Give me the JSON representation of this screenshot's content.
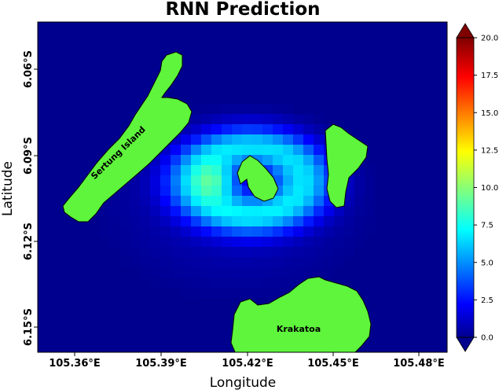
{
  "title": "RNN Prediction",
  "x_axis": {
    "label": "Longitude",
    "ticks": [
      "105.36°E",
      "105.39°E",
      "105.42°E",
      "105.45°E",
      "105.48°E"
    ]
  },
  "y_axis": {
    "label": "Latitude",
    "ticks": [
      "6.06°S",
      "6.09°S",
      "6.12°S",
      "6.15°S"
    ]
  },
  "colorbar": {
    "colormap": "jet",
    "range": [
      0,
      20
    ],
    "ticks": [
      "0.0",
      "2.5",
      "5.0",
      "7.5",
      "10.0",
      "12.5",
      "15.0",
      "17.5",
      "20.0"
    ]
  },
  "islands": [
    {
      "name": "Sertung Island",
      "label": "Sertung Island",
      "color": "#5ef53c"
    },
    {
      "name": "Krakatoa",
      "label": "Krakatoa",
      "color": "#5ef53c"
    },
    {
      "name": "Anak Krakatau",
      "label": "",
      "color": "#5ef53c"
    },
    {
      "name": "Panjang",
      "label": "",
      "color": "#5ef53c"
    }
  ],
  "colors": {
    "background_value": "#00008f",
    "land": "#5ef53c"
  }
}
